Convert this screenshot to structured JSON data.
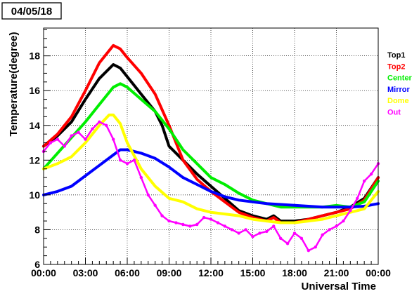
{
  "date_label": "04/05/18",
  "chart_data": {
    "type": "line",
    "xlabel": "Universal Time",
    "ylabel": "Temperature(degree)",
    "x_unit": "hours",
    "xlim": [
      0,
      24
    ],
    "ylim": [
      6,
      19.6
    ],
    "x_ticks": [
      0,
      3,
      6,
      9,
      12,
      15,
      18,
      21,
      24
    ],
    "x_tick_labels": [
      "00:00",
      "03:00",
      "06:00",
      "09:00",
      "12:00",
      "15:00",
      "18:00",
      "21:00",
      "00:00"
    ],
    "y_ticks": [
      6,
      8,
      10,
      12,
      14,
      16,
      18
    ],
    "y_tick_labels": [
      "6",
      "8",
      "10",
      "12",
      "14",
      "16",
      "18"
    ],
    "grid": "dotted",
    "legend_position": "right",
    "series": [
      {
        "name": "Top1",
        "color": "#000000",
        "x": [
          0,
          1,
          2,
          3,
          4,
          5,
          5.5,
          6,
          7,
          8,
          8.5,
          9,
          10,
          11,
          12,
          13,
          14,
          15,
          16,
          16.5,
          17,
          18,
          19,
          20,
          21,
          22,
          23,
          24
        ],
        "y": [
          12.8,
          13.4,
          14.2,
          15.5,
          16.7,
          17.5,
          17.3,
          16.8,
          15.8,
          14.8,
          14.0,
          12.8,
          12.0,
          11.2,
          10.5,
          9.8,
          9.1,
          8.8,
          8.6,
          8.8,
          8.5,
          8.5,
          8.6,
          8.8,
          9.0,
          9.3,
          9.8,
          11.0
        ]
      },
      {
        "name": "Top2",
        "color": "#ff0000",
        "x": [
          0,
          1,
          2,
          3,
          4,
          5,
          5.5,
          6,
          7,
          8,
          9,
          10,
          11,
          12,
          13,
          14,
          15,
          16,
          16.5,
          17,
          18,
          19,
          20,
          21,
          22,
          23,
          24
        ],
        "y": [
          12.8,
          13.5,
          14.5,
          16.0,
          17.6,
          18.6,
          18.4,
          17.9,
          17.0,
          15.8,
          14.0,
          12.0,
          10.9,
          10.2,
          9.6,
          9.0,
          8.7,
          8.5,
          8.7,
          8.4,
          8.4,
          8.6,
          8.8,
          9.0,
          9.2,
          9.7,
          11.0
        ]
      },
      {
        "name": "Center",
        "color": "#00ee00",
        "x": [
          0,
          1,
          2,
          3,
          4,
          5,
          5.5,
          6,
          7,
          8,
          9,
          10,
          11,
          12,
          13,
          14,
          15,
          16,
          17,
          18,
          19,
          20,
          21,
          22,
          23,
          24
        ],
        "y": [
          11.5,
          12.4,
          13.3,
          14.2,
          15.2,
          16.2,
          16.4,
          16.2,
          15.5,
          14.8,
          13.8,
          12.6,
          11.8,
          11.0,
          10.6,
          10.1,
          9.7,
          9.5,
          9.3,
          9.3,
          9.3,
          9.3,
          9.4,
          9.3,
          9.6,
          10.8
        ]
      },
      {
        "name": "Mirror",
        "color": "#0000ff",
        "x": [
          0,
          1,
          2,
          3,
          4,
          5,
          5.5,
          6,
          7,
          8,
          9,
          10,
          11,
          12,
          13,
          14,
          15,
          16,
          17,
          18,
          19,
          20,
          21,
          22,
          23,
          24
        ],
        "y": [
          10.0,
          10.2,
          10.5,
          11.1,
          11.7,
          12.3,
          12.6,
          12.6,
          12.4,
          12.1,
          11.6,
          11.0,
          10.6,
          10.2,
          9.9,
          9.7,
          9.6,
          9.5,
          9.45,
          9.4,
          9.35,
          9.3,
          9.3,
          9.3,
          9.35,
          9.5
        ]
      },
      {
        "name": "Dome",
        "color": "#ffff00",
        "x": [
          0,
          1,
          2,
          3,
          4,
          4.7,
          5,
          5.5,
          6,
          7,
          8,
          9,
          10,
          11,
          12,
          13,
          14,
          15,
          16,
          17,
          18,
          19,
          20,
          21,
          22,
          23,
          24
        ],
        "y": [
          11.5,
          11.8,
          12.2,
          13.0,
          14.0,
          14.6,
          14.6,
          14.1,
          13.0,
          11.5,
          10.5,
          9.8,
          9.6,
          9.2,
          9.0,
          8.9,
          8.8,
          8.6,
          8.5,
          8.4,
          8.4,
          8.5,
          8.6,
          8.8,
          9.0,
          9.2,
          10.2
        ]
      },
      {
        "name": "Out",
        "color": "#ff00ff",
        "x": [
          0,
          0.5,
          1,
          1.5,
          2,
          2.5,
          3,
          3.5,
          4,
          4.5,
          5,
          5.5,
          6,
          6.5,
          7,
          7.5,
          8,
          8.5,
          9,
          9.5,
          10,
          10.5,
          11,
          11.5,
          12,
          12.5,
          13,
          13.5,
          14,
          14.5,
          15,
          15.5,
          16,
          16.5,
          17,
          17.5,
          18,
          18.5,
          19,
          19.5,
          20,
          20.5,
          21,
          21.5,
          22,
          22.5,
          23,
          23.5,
          24
        ],
        "y": [
          12.5,
          13.0,
          13.2,
          12.8,
          13.4,
          13.6,
          13.2,
          13.8,
          14.2,
          14.0,
          13.2,
          12.0,
          11.8,
          12.0,
          11.0,
          10.0,
          9.4,
          8.8,
          8.5,
          8.4,
          8.3,
          8.2,
          8.3,
          8.7,
          8.6,
          8.4,
          8.2,
          8.0,
          7.8,
          8.0,
          7.6,
          7.8,
          7.9,
          8.2,
          7.5,
          7.2,
          7.8,
          7.5,
          6.8,
          7.0,
          7.7,
          8.0,
          8.2,
          8.5,
          9.1,
          9.8,
          10.8,
          11.2,
          11.8
        ]
      }
    ]
  }
}
